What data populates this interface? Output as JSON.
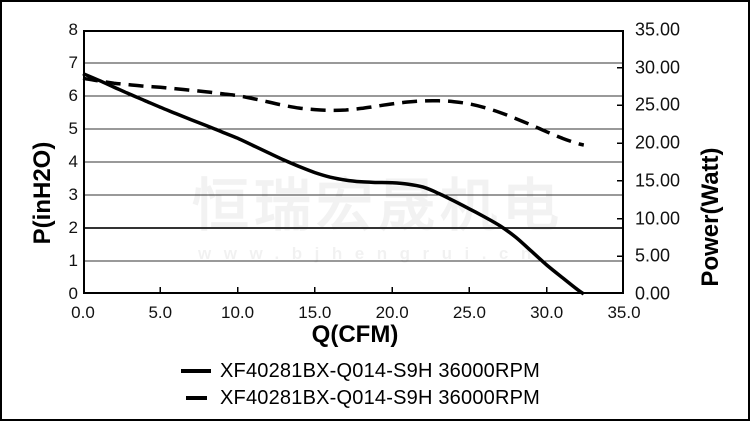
{
  "watermark": {
    "brand": "恒瑞宏晟机电",
    "url": "www.bjhengrui.cn"
  },
  "chart_data": {
    "type": "line",
    "title": "",
    "x_axis": {
      "label": "Q(CFM)",
      "min": 0,
      "max": 35,
      "ticks": [
        "0.0",
        "5.0",
        "10.0",
        "15.0",
        "20.0",
        "25.0",
        "30.0",
        "35.0"
      ]
    },
    "y_left": {
      "label": "P(inH2O)",
      "min": 0,
      "max": 8,
      "ticks": [
        "0",
        "1",
        "2",
        "3",
        "4",
        "5",
        "6",
        "7",
        "8"
      ]
    },
    "y_right": {
      "label": "Power(Watt)",
      "min": 0,
      "max": 35,
      "ticks": [
        "0.00",
        "5.00",
        "10.00",
        "15.00",
        "20.00",
        "25.00",
        "30.00",
        "35.00"
      ]
    },
    "layout": {
      "grid": "horizontal",
      "h_gridlines": [
        1,
        2,
        3,
        4,
        5,
        6,
        7
      ],
      "x_tick_marks": [
        5,
        10,
        15,
        20,
        25,
        30
      ],
      "right_tick_marks": [
        5,
        10,
        15,
        20,
        25,
        30
      ],
      "legend_position": "bottom",
      "line_color": "#000000"
    },
    "series": [
      {
        "name": "XF40281BX-Q014-S9H 36000RPM",
        "style": "solid",
        "axis": "left",
        "quantity": "Static Pressure P (inH2O) vs Airflow Q (CFM)",
        "points": [
          [
            0,
            6.68
          ],
          [
            1,
            6.48
          ],
          [
            2,
            6.27
          ],
          [
            3,
            6.06
          ],
          [
            4,
            5.86
          ],
          [
            5,
            5.66
          ],
          [
            6,
            5.47
          ],
          [
            7,
            5.28
          ],
          [
            8,
            5.1
          ],
          [
            9,
            4.91
          ],
          [
            10,
            4.72
          ],
          [
            11,
            4.5
          ],
          [
            12,
            4.28
          ],
          [
            13,
            4.06
          ],
          [
            14,
            3.86
          ],
          [
            15,
            3.68
          ],
          [
            16,
            3.54
          ],
          [
            17,
            3.45
          ],
          [
            18,
            3.4
          ],
          [
            19,
            3.38
          ],
          [
            20,
            3.37
          ],
          [
            21,
            3.33
          ],
          [
            22,
            3.24
          ],
          [
            23,
            3.05
          ],
          [
            24,
            2.82
          ],
          [
            25,
            2.58
          ],
          [
            26,
            2.33
          ],
          [
            27,
            2.06
          ],
          [
            28,
            1.72
          ],
          [
            29,
            1.3
          ],
          [
            30,
            0.88
          ],
          [
            31,
            0.5
          ],
          [
            32,
            0.13
          ],
          [
            32.4,
            0
          ]
        ]
      },
      {
        "name": "XF40281BX-Q014-S9H 36000RPM",
        "style": "dashed",
        "axis": "right",
        "quantity": "Power (Watt) vs Airflow Q (CFM)",
        "points": [
          [
            0,
            28.6
          ],
          [
            1,
            28.25
          ],
          [
            2,
            27.95
          ],
          [
            3,
            27.75
          ],
          [
            4,
            27.55
          ],
          [
            5,
            27.4
          ],
          [
            6,
            27.2
          ],
          [
            7,
            27.0
          ],
          [
            8,
            26.8
          ],
          [
            9,
            26.55
          ],
          [
            10,
            26.3
          ],
          [
            11,
            25.9
          ],
          [
            12,
            25.45
          ],
          [
            13,
            25.0
          ],
          [
            14,
            24.65
          ],
          [
            15,
            24.45
          ],
          [
            16,
            24.35
          ],
          [
            17,
            24.4
          ],
          [
            18,
            24.6
          ],
          [
            19,
            24.9
          ],
          [
            20,
            25.2
          ],
          [
            21,
            25.45
          ],
          [
            22,
            25.6
          ],
          [
            23,
            25.62
          ],
          [
            24,
            25.5
          ],
          [
            25,
            25.2
          ],
          [
            26,
            24.7
          ],
          [
            27,
            24.05
          ],
          [
            28,
            23.25
          ],
          [
            29,
            22.4
          ],
          [
            30,
            21.5
          ],
          [
            31,
            20.65
          ],
          [
            32,
            19.95
          ],
          [
            32.4,
            19.75
          ]
        ]
      }
    ]
  }
}
